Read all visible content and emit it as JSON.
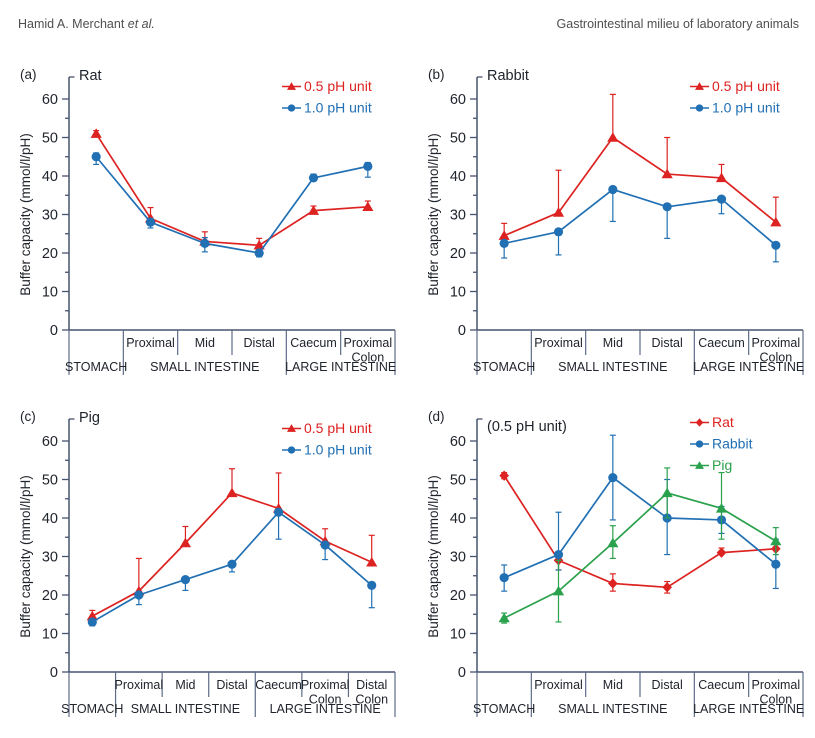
{
  "header": {
    "left_author": "Hamid A. Merchant",
    "left_etal": "et al.",
    "right_title": "Gastrointestinal milieu of laboratory animals"
  },
  "colors": {
    "red": "#dc2321",
    "blue": "#2170b4",
    "green": "#2aa14c",
    "axis": "#46536e",
    "table_line": "#5d6b87",
    "text": "#20242c",
    "header_text": "#4f4f4f"
  },
  "chart_data": [
    {
      "panel_label": "(a)",
      "title": "Rat",
      "type": "line",
      "ylabel": "Buffer capacity (mmol/l/pH)",
      "ylim": [
        0,
        65
      ],
      "yticks": [
        0,
        10,
        20,
        30,
        40,
        50,
        60
      ],
      "grid": false,
      "legend_position": "top-right",
      "categories": [
        "",
        "Proximal",
        "Mid",
        "Distal",
        "Caecum",
        "Proximal\nColon"
      ],
      "region_groups": [
        {
          "label": "STOMACH",
          "span": 1
        },
        {
          "label": "SMALL INTESTINE",
          "span": 3
        },
        {
          "label": "LARGE INTESTINE",
          "span": 2
        }
      ],
      "series": [
        {
          "name": "0.5 pH unit",
          "color_key": "red",
          "marker": "triangle",
          "values": [
            51,
            29,
            23,
            22,
            31,
            32
          ],
          "err_up": [
            0.8,
            2.8,
            2.5,
            1.8,
            1.2,
            1.5
          ],
          "err_down": [
            0.8,
            0,
            0,
            0,
            0,
            0
          ]
        },
        {
          "name": "1.0 pH unit",
          "color_key": "blue",
          "marker": "circle",
          "values": [
            45,
            28,
            22.5,
            20,
            39.5,
            42.5
          ],
          "err_up": [
            1,
            1,
            1.5,
            0.8,
            1,
            1
          ],
          "err_down": [
            2,
            1.5,
            2.2,
            1,
            0,
            2.8
          ]
        }
      ]
    },
    {
      "panel_label": "(b)",
      "title": "Rabbit",
      "type": "line",
      "ylabel": "Buffer capacity (mmol/l/pH)",
      "ylim": [
        0,
        65
      ],
      "yticks": [
        0,
        10,
        20,
        30,
        40,
        50,
        60
      ],
      "grid": false,
      "legend_position": "top-right",
      "categories": [
        "",
        "Proximal",
        "Mid",
        "Distal",
        "Caecum",
        "Proximal\nColon"
      ],
      "region_groups": [
        {
          "label": "STOMACH",
          "span": 1
        },
        {
          "label": "SMALL INTESTINE",
          "span": 3
        },
        {
          "label": "LARGE INTESTINE",
          "span": 2
        }
      ],
      "series": [
        {
          "name": "0.5 pH unit",
          "color_key": "red",
          "marker": "triangle",
          "values": [
            24.5,
            30.5,
            50,
            40.5,
            39.5,
            28
          ],
          "err_up": [
            3.2,
            11,
            11.2,
            9.5,
            3.5,
            6.5
          ],
          "err_down": [
            1,
            0,
            0,
            0,
            0,
            0
          ]
        },
        {
          "name": "1.0 pH unit",
          "color_key": "blue",
          "marker": "circle",
          "values": [
            22.5,
            25.5,
            36.5,
            32,
            34,
            22
          ],
          "err_up": [
            0,
            0,
            0,
            0,
            0,
            0
          ],
          "err_down": [
            3.8,
            6,
            8.3,
            8.2,
            3.8,
            4.3
          ]
        }
      ]
    },
    {
      "panel_label": "(c)",
      "title": "Pig",
      "type": "line",
      "ylabel": "Buffer capacity (mmol/l/pH)",
      "ylim": [
        0,
        65
      ],
      "yticks": [
        0,
        10,
        20,
        30,
        40,
        50,
        60
      ],
      "grid": false,
      "legend_position": "top-right",
      "categories": [
        "",
        "Proximal",
        "Mid",
        "Distal",
        "Caecum",
        "Proximal\nColon",
        "Distal\nColon"
      ],
      "region_groups": [
        {
          "label": "STOMACH",
          "span": 1
        },
        {
          "label": "SMALL INTESTINE",
          "span": 3
        },
        {
          "label": "LARGE INTESTINE",
          "span": 3
        }
      ],
      "series": [
        {
          "name": "0.5 pH unit",
          "color_key": "red",
          "marker": "triangle",
          "values": [
            14.5,
            21,
            33.5,
            46.5,
            42.5,
            34,
            28.5
          ],
          "err_up": [
            1.5,
            8.5,
            4.3,
            6.3,
            9.2,
            3.2,
            7
          ],
          "err_down": [
            1,
            0,
            0,
            0,
            0,
            0,
            0
          ]
        },
        {
          "name": "1.0 pH unit",
          "color_key": "blue",
          "marker": "circle",
          "values": [
            13,
            20,
            24,
            28,
            41.5,
            33,
            22.5
          ],
          "err_up": [
            0,
            0,
            0,
            0,
            0,
            0,
            0
          ],
          "err_down": [
            1,
            2.5,
            2.8,
            2,
            7,
            3.8,
            5.8
          ]
        }
      ]
    },
    {
      "panel_label": "(d)",
      "title": "(0.5 pH unit)",
      "type": "line",
      "ylabel": "Buffer capacity (mmol/l/pH)",
      "ylim": [
        0,
        65
      ],
      "yticks": [
        0,
        10,
        20,
        30,
        40,
        50,
        60
      ],
      "grid": false,
      "legend_position": "top-right",
      "title_y": 31,
      "legend_y": 27,
      "categories": [
        "",
        "Proximal",
        "Mid",
        "Distal",
        "Caecum",
        "Proximal\nColon"
      ],
      "region_groups": [
        {
          "label": "STOMACH",
          "span": 1
        },
        {
          "label": "SMALL INTESTINE",
          "span": 3
        },
        {
          "label": "LARGE INTESTINE",
          "span": 2
        }
      ],
      "series": [
        {
          "name": "Rat",
          "color_key": "red",
          "marker": "diamond",
          "values": [
            51,
            29,
            23,
            22,
            31,
            32
          ],
          "err_up": [
            0.8,
            1.5,
            2.5,
            1.5,
            1.2,
            1.3
          ],
          "err_down": [
            0.8,
            2.5,
            2,
            1.5,
            0,
            0
          ]
        },
        {
          "name": "Rabbit",
          "color_key": "blue",
          "marker": "circle",
          "values": [
            24.5,
            30.5,
            50.5,
            40,
            39.5,
            28
          ],
          "err_up": [
            3.3,
            11,
            11,
            10,
            3.5,
            6.5
          ],
          "err_down": [
            3.5,
            4,
            11,
            9.5,
            3.5,
            6.3
          ]
        },
        {
          "name": "Pig",
          "color_key": "green",
          "marker": "triangle",
          "values": [
            14,
            21,
            33.5,
            46.5,
            42.5,
            34
          ],
          "err_up": [
            1.3,
            8,
            4.5,
            6.5,
            9.3,
            3.5
          ],
          "err_down": [
            1.3,
            8,
            4,
            6.5,
            8,
            3.5
          ]
        }
      ]
    }
  ]
}
